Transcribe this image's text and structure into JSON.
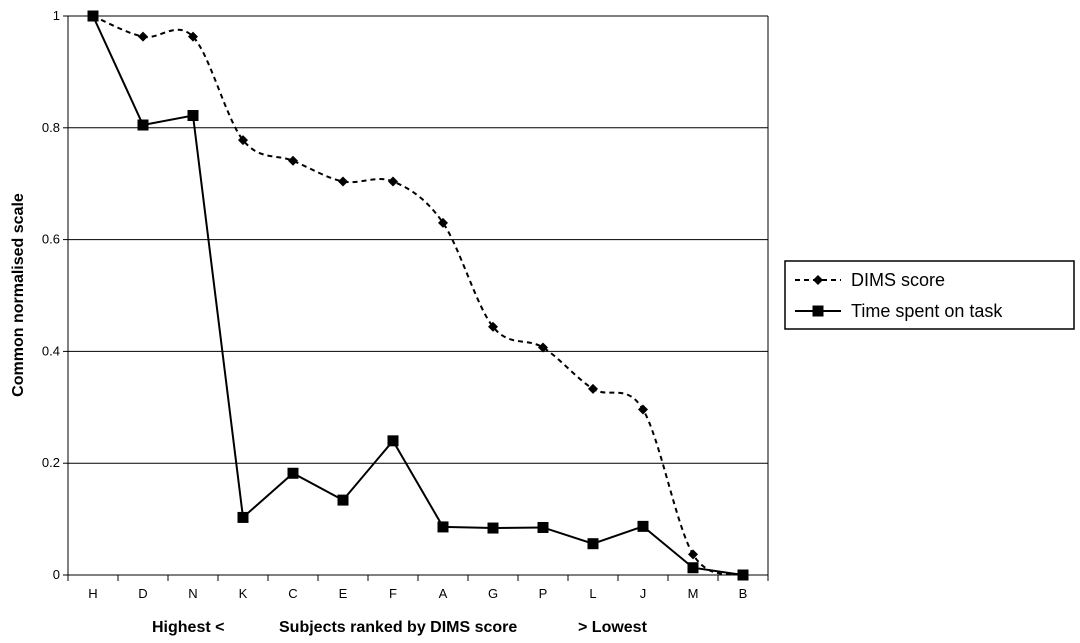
{
  "chart_data": {
    "type": "line",
    "title": "",
    "xlabel_parts": [
      "Highest <",
      "Subjects ranked by DIMS score",
      "> Lowest"
    ],
    "ylabel": "Common normalised scale",
    "categories": [
      "H",
      "D",
      "N",
      "K",
      "C",
      "E",
      "F",
      "A",
      "G",
      "P",
      "L",
      "J",
      "M",
      "B"
    ],
    "y_ticks": [
      "0",
      "0.2",
      "0.4",
      "0.6",
      "0.8",
      "1"
    ],
    "ylim": [
      0,
      1
    ],
    "grid": "horizontal",
    "legend_position": "right",
    "series": [
      {
        "name": "DIMS score",
        "style": "dashed",
        "marker": "diamond",
        "color": "#000000",
        "values": [
          1.0,
          0.963,
          0.963,
          0.778,
          0.741,
          0.704,
          0.704,
          0.63,
          0.444,
          0.407,
          0.333,
          0.296,
          0.037,
          0.0
        ]
      },
      {
        "name": "Time spent on task",
        "style": "solid",
        "marker": "square",
        "color": "#000000",
        "values": [
          1.0,
          0.805,
          0.822,
          0.103,
          0.182,
          0.134,
          0.24,
          0.086,
          0.084,
          0.085,
          0.056,
          0.087,
          0.013,
          0.0
        ]
      }
    ]
  }
}
